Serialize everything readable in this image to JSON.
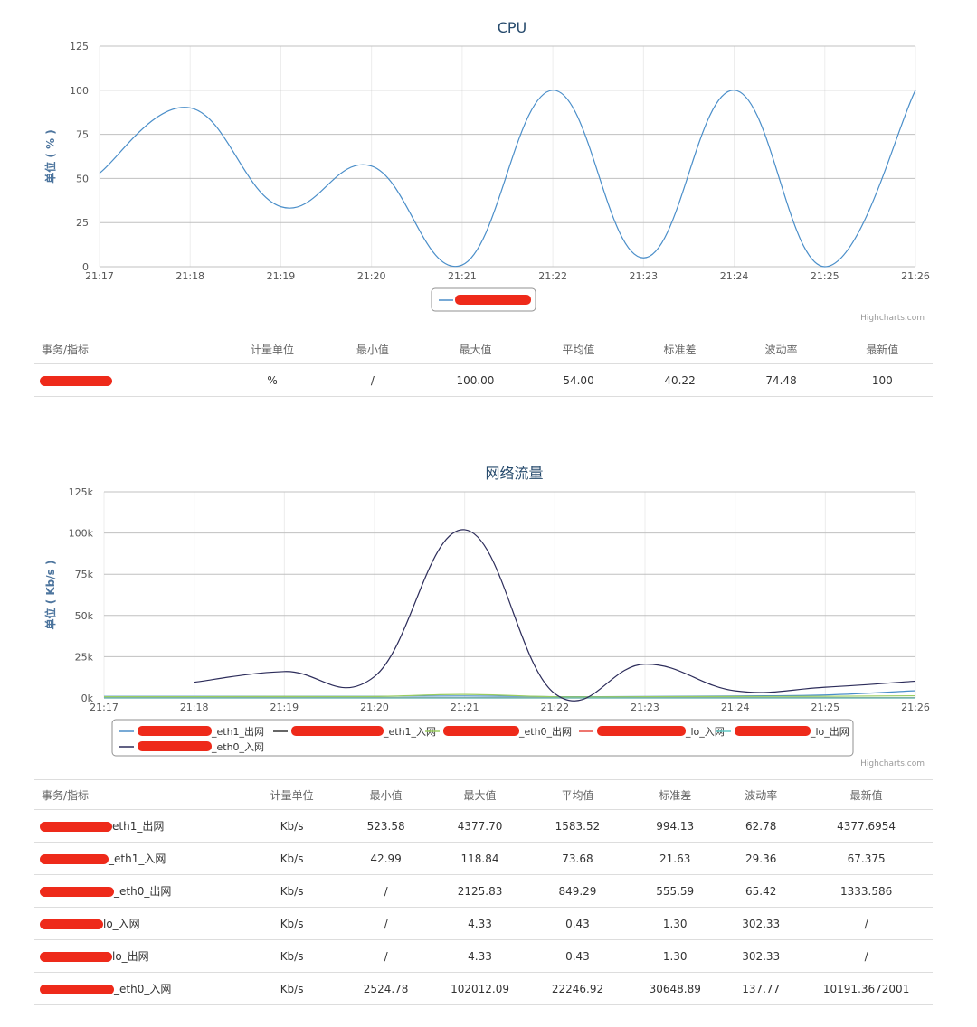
{
  "cpu": {
    "chart_data": {
      "type": "line",
      "title": "CPU",
      "ylabel": "单位 ( % )",
      "xlabel": "",
      "x": [
        "21:17",
        "21:18",
        "21:19",
        "21:20",
        "21:21",
        "21:22",
        "21:23",
        "21:24",
        "21:25",
        "21:26"
      ],
      "yticks": [
        "0",
        "25",
        "50",
        "75",
        "100",
        "125"
      ],
      "ylim": [
        0,
        125
      ],
      "grid": true,
      "legend": "bottom-center",
      "series": [
        {
          "name": "",
          "color": "#4a8ec9",
          "values": [
            53,
            90,
            34,
            57,
            1,
            100,
            5,
            100,
            0,
            100
          ]
        }
      ]
    },
    "credit": "Highcharts.com",
    "table": {
      "headers": [
        "事务/指标",
        "计量单位",
        "最小值",
        "最大值",
        "平均值",
        "标准差",
        "波动率",
        "最新值"
      ],
      "rows": [
        {
          "name_suffix": "",
          "unit": "%",
          "min": "/",
          "max": "100.00",
          "avg": "54.00",
          "std": "40.22",
          "vol": "74.48",
          "last": "100"
        }
      ]
    }
  },
  "net": {
    "chart_data": {
      "type": "line",
      "title": "网络流量",
      "ylabel": "单位 ( Kb/s )",
      "xlabel": "",
      "x": [
        "21:17",
        "21:18",
        "21:19",
        "21:20",
        "21:21",
        "21:22",
        "21:23",
        "21:24",
        "21:25",
        "21:26"
      ],
      "yticks": [
        "0k",
        "25k",
        "50k",
        "75k",
        "100k",
        "125k"
      ],
      "ylim": [
        0,
        125000
      ],
      "grid": true,
      "legend": "bottom-center",
      "series": [
        {
          "name": "_eth1_出网",
          "color": "#4a8ec9",
          "values": [
            1000,
            1000,
            1000,
            1000,
            1200,
            800,
            900,
            1200,
            1800,
            4378
          ]
        },
        {
          "name": "_eth1_入网",
          "color": "#333333",
          "values": [
            100,
            100,
            100,
            100,
            100,
            100,
            100,
            100,
            100,
            67
          ]
        },
        {
          "name": "_eth0_出网",
          "color": "#9acd60",
          "values": [
            800,
            800,
            900,
            900,
            2126,
            700,
            800,
            900,
            1000,
            1334
          ]
        },
        {
          "name": "_lo_入网",
          "color": "#e8483f",
          "values": [
            0,
            0,
            0,
            0,
            4,
            0,
            0,
            0,
            0,
            0
          ]
        },
        {
          "name": "_lo_出网",
          "color": "#5fc9c4",
          "values": [
            0,
            0,
            0,
            0,
            4,
            0,
            0,
            0,
            0,
            0
          ]
        },
        {
          "name": "_eth0_入网",
          "color": "#2c2c5a",
          "values": [
            null,
            9500,
            16000,
            13000,
            102012,
            2600,
            20500,
            4300,
            6500,
            10191
          ]
        }
      ]
    },
    "credit": "Highcharts.com",
    "table": {
      "headers": [
        "事务/指标",
        "计量单位",
        "最小值",
        "最大值",
        "平均值",
        "标准差",
        "波动率",
        "最新值"
      ],
      "rows": [
        {
          "name_suffix": "eth1_出网",
          "unit": "Kb/s",
          "min": "523.58",
          "max": "4377.70",
          "avg": "1583.52",
          "std": "994.13",
          "vol": "62.78",
          "last": "4377.6954"
        },
        {
          "name_suffix": "_eth1_入网",
          "unit": "Kb/s",
          "min": "42.99",
          "max": "118.84",
          "avg": "73.68",
          "std": "21.63",
          "vol": "29.36",
          "last": "67.375"
        },
        {
          "name_suffix": "_eth0_出网",
          "unit": "Kb/s",
          "min": "/",
          "max": "2125.83",
          "avg": "849.29",
          "std": "555.59",
          "vol": "65.42",
          "last": "1333.586"
        },
        {
          "name_suffix": "lo_入网",
          "unit": "Kb/s",
          "min": "/",
          "max": "4.33",
          "avg": "0.43",
          "std": "1.30",
          "vol": "302.33",
          "last": "/"
        },
        {
          "name_suffix": "lo_出网",
          "unit": "Kb/s",
          "min": "/",
          "max": "4.33",
          "avg": "0.43",
          "std": "1.30",
          "vol": "302.33",
          "last": "/"
        },
        {
          "name_suffix": "_eth0_入网",
          "unit": "Kb/s",
          "min": "2524.78",
          "max": "102012.09",
          "avg": "22246.92",
          "std": "30648.89",
          "vol": "137.77",
          "last": "10191.3672001"
        }
      ]
    }
  }
}
